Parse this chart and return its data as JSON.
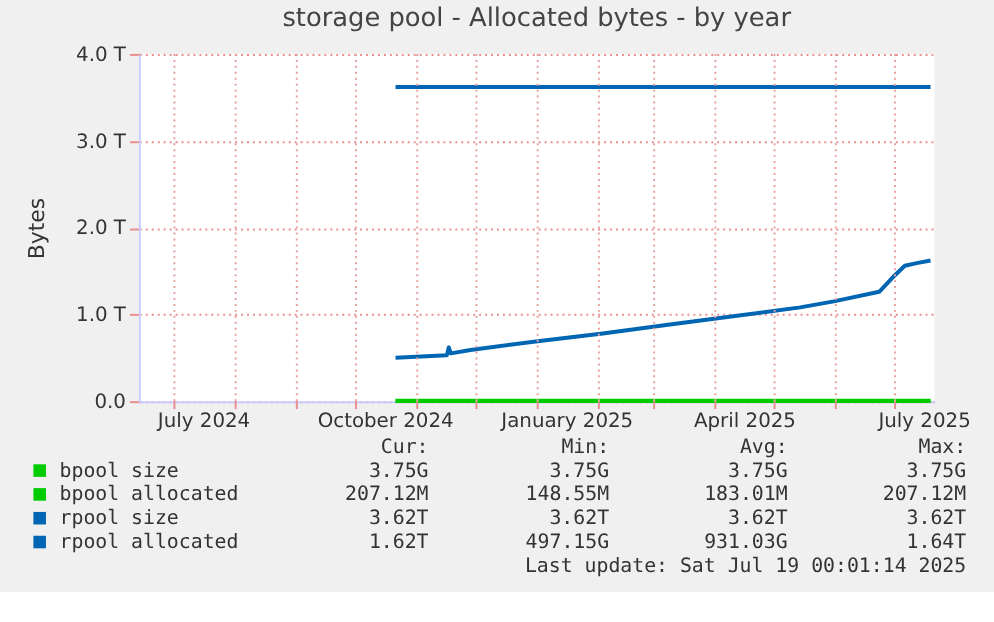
{
  "chart_data": {
    "type": "line",
    "title": "storage pool - Allocated bytes - by year",
    "ylabel": "Bytes",
    "xlim": [
      "2024-06-13",
      "2025-07-21"
    ],
    "xticks": [
      {
        "value": "2024-07-01",
        "label": null
      },
      {
        "value": "2024-07-16",
        "label": "July 2024"
      },
      {
        "value": "2024-08-01",
        "label": null
      },
      {
        "value": "2024-09-01",
        "label": null
      },
      {
        "value": "2024-10-01",
        "label": null
      },
      {
        "value": "2024-10-16",
        "label": "October 2024"
      },
      {
        "value": "2024-11-01",
        "label": null
      },
      {
        "value": "2024-12-01",
        "label": null
      },
      {
        "value": "2025-01-01",
        "label": null
      },
      {
        "value": "2025-01-16",
        "label": "January 2025"
      },
      {
        "value": "2025-02-01",
        "label": null
      },
      {
        "value": "2025-03-01",
        "label": null
      },
      {
        "value": "2025-04-01",
        "label": null
      },
      {
        "value": "2025-04-16",
        "label": "April 2025"
      },
      {
        "value": "2025-05-01",
        "label": null
      },
      {
        "value": "2025-06-01",
        "label": null
      },
      {
        "value": "2025-07-01",
        "label": null
      },
      {
        "value": "2025-07-16",
        "label": "July 2025"
      }
    ],
    "ylim": [
      0,
      4.0
    ],
    "yticks": [
      {
        "value": 0,
        "label": "0.0"
      },
      {
        "value": 1.0,
        "label": "1.0 T"
      },
      {
        "value": 2.0,
        "label": "2.0 T"
      },
      {
        "value": 3.0,
        "label": "3.0 T"
      },
      {
        "value": 4.0,
        "label": "4.0 T"
      }
    ],
    "grid": true,
    "legend": "bottom",
    "series": [
      {
        "name": "bpool size",
        "color": "#00cc00",
        "x": [
          "2024-10-21",
          "2025-07-19"
        ],
        "values": [
          0.00375,
          0.00375
        ]
      },
      {
        "name": "bpool allocated",
        "color": "#00cc00",
        "x": [
          "2024-10-21",
          "2025-07-19"
        ],
        "values": [
          0.0002,
          0.0002
        ]
      },
      {
        "name": "rpool size",
        "color": "#0066b3",
        "x": [
          "2024-10-21",
          "2025-07-19"
        ],
        "values": [
          3.62,
          3.62
        ]
      },
      {
        "name": "rpool allocated",
        "color": "#0066b3",
        "x": [
          "2024-10-21",
          "2024-11-16",
          "2024-11-17",
          "2024-11-18",
          "2024-11-28",
          "2025-01-01",
          "2025-02-03",
          "2025-03-08",
          "2025-04-11",
          "2025-05-14",
          "2025-05-31",
          "2025-06-23",
          "2025-06-30",
          "2025-07-06",
          "2025-07-12",
          "2025-07-19"
        ],
        "values": [
          0.5,
          0.53,
          0.62,
          0.55,
          0.59,
          0.69,
          0.78,
          0.88,
          0.98,
          1.08,
          1.15,
          1.26,
          1.43,
          1.56,
          1.59,
          1.62
        ]
      }
    ],
    "annotations": [
      "Cur:",
      "Min:",
      "Avg:",
      "Max:",
      "3.75G",
      "3.75G",
      "3.75G",
      "3.75G",
      "207.12M",
      "148.55M",
      "183.01M",
      "207.12M",
      "3.62T",
      "3.62T",
      "3.62T",
      "3.62T",
      "1.62T",
      "497.15G",
      "931.03G",
      "1.64T",
      "Last update: Sat Jul 19 00:01:14 2025"
    ]
  }
}
